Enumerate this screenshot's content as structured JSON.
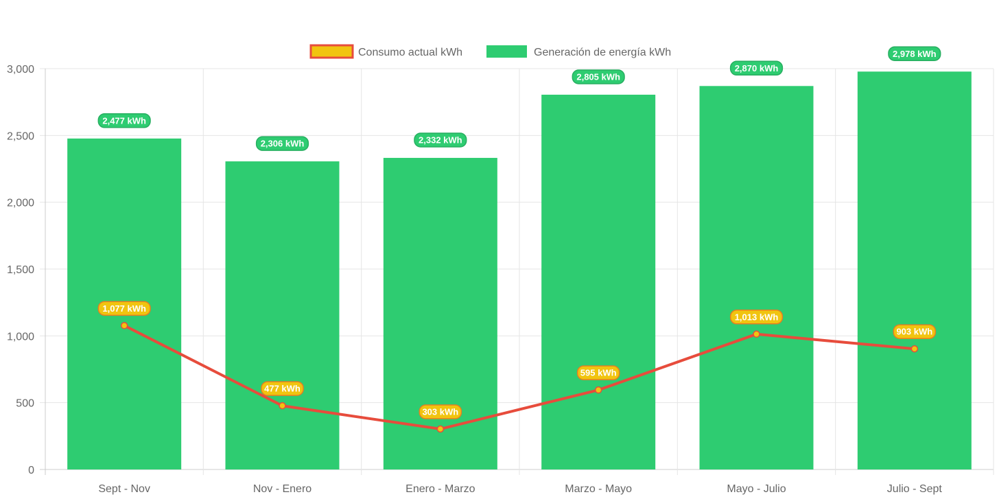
{
  "chart_data": {
    "type": "bar",
    "categories": [
      "Sept - Nov",
      "Nov - Enero",
      "Enero - Marzo",
      "Marzo - Mayo",
      "Mayo - Julio",
      "Julio - Sept"
    ],
    "ylim": [
      0,
      3000
    ],
    "yticks": [
      0,
      500,
      1000,
      1500,
      2000,
      2500,
      3000
    ],
    "ytick_labels": [
      "0",
      "500",
      "1,000",
      "1,500",
      "2,000",
      "2,500",
      "3,000"
    ],
    "grid": true,
    "legend_position": "top",
    "series": [
      {
        "name": "Consumo actual kWh",
        "type": "line",
        "values": [
          1077,
          477,
          303,
          595,
          1013,
          903
        ],
        "labels": [
          "1,077 kWh",
          "477 kWh",
          "303 kWh",
          "595 kWh",
          "1,013 kWh",
          "903 kWh"
        ],
        "color": "#e74c3c",
        "fill": "#f1c40f"
      },
      {
        "name": "Generación de energía kWh",
        "type": "bar",
        "values": [
          2477,
          2306,
          2332,
          2805,
          2870,
          2978
        ],
        "labels": [
          "2,477 kWh",
          "2,306 kWh",
          "2,332 kWh",
          "2,805 kWh",
          "2,870 kWh",
          "2,978 kWh"
        ],
        "color": "#2ecc71"
      }
    ]
  }
}
